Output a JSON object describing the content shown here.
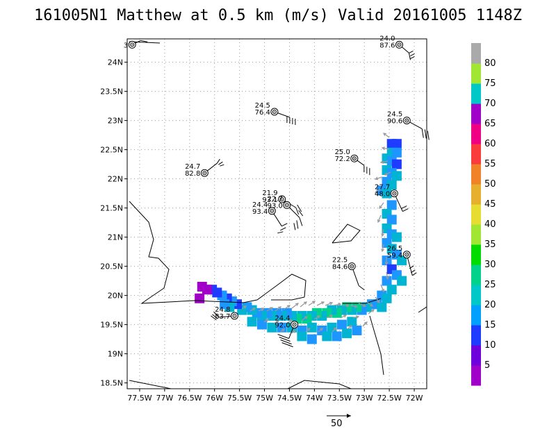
{
  "title": "161005N1 Matthew at 0.5 km (m/s) Valid 20161005 1148Z",
  "chart_data": {
    "type": "scatter",
    "xlim": [
      -77.75,
      -71.75
    ],
    "ylim": [
      18.4,
      24.4
    ],
    "grid": true,
    "x_ticks": [
      -77.5,
      -77.0,
      -76.5,
      -76.0,
      -75.5,
      -75.0,
      -74.5,
      -74.0,
      -73.5,
      -73.0,
      -72.5,
      -72.0
    ],
    "x_tick_labels": [
      "77.5W",
      "77W",
      "76.5W",
      "76W",
      "75.5W",
      "75W",
      "74.5W",
      "74W",
      "73.5W",
      "73W",
      "72.5W",
      "72W"
    ],
    "y_ticks": [
      18.5,
      19.0,
      19.5,
      20.0,
      20.5,
      21.0,
      21.5,
      22.0,
      22.5,
      23.0,
      23.5,
      24.0
    ],
    "y_tick_labels": [
      "18.5N",
      "19N",
      "19.5N",
      "20N",
      "20.5N",
      "21N",
      "21.5N",
      "22N",
      "22.5N",
      "23N",
      "23.5N",
      "24N"
    ],
    "colorbar": {
      "levels": [
        5,
        10,
        15,
        20,
        25,
        30,
        35,
        40,
        45,
        50,
        55,
        60,
        65,
        70,
        75,
        80
      ],
      "labels": [
        "5",
        "10",
        "15",
        "20",
        "25",
        "30",
        "35",
        "40",
        "45",
        "50",
        "55",
        "60",
        "65",
        "70",
        "75",
        "80"
      ],
      "colors": [
        "#a000c8",
        "#6e00dc",
        "#1e3cff",
        "#00a0ff",
        "#00c8c8",
        "#00d28c",
        "#00dc00",
        "#a0e632",
        "#e6dc32",
        "#e6af2d",
        "#f08228",
        "#fa3c3c",
        "#f00082",
        "#a000c8",
        "#00c8c8",
        "#a0e632",
        "#aaaaaa"
      ]
    },
    "stations": [
      {
        "lon": -77.65,
        "lat": 24.3,
        "l1": "",
        "l2": "3"
      },
      {
        "lon": -72.3,
        "lat": 24.3,
        "l1": "24.0",
        "l2": "87.6"
      },
      {
        "lon": -74.8,
        "lat": 23.15,
        "l1": "24.5",
        "l2": "76.4"
      },
      {
        "lon": -72.15,
        "lat": 23.0,
        "l1": "24.5",
        "l2": "90.6"
      },
      {
        "lon": -73.2,
        "lat": 22.35,
        "l1": "25.0",
        "l2": "72.2"
      },
      {
        "lon": -76.2,
        "lat": 22.1,
        "l1": "24.7",
        "l2": "82.8"
      },
      {
        "lon": -72.4,
        "lat": 21.75,
        "l1": "27.7",
        "l2": "48.0"
      },
      {
        "lon": -74.65,
        "lat": 21.65,
        "l1": "21.9",
        "l2": "93.1"
      },
      {
        "lon": -74.55,
        "lat": 21.55,
        "l1": "22.7",
        "l2": "93.0"
      },
      {
        "lon": -74.85,
        "lat": 21.45,
        "l1": "24.4",
        "l2": "93.4"
      },
      {
        "lon": -72.15,
        "lat": 20.7,
        "l1": "26.5",
        "l2": "59.4"
      },
      {
        "lon": -73.25,
        "lat": 20.5,
        "l1": "22.5",
        "l2": "84.6"
      },
      {
        "lon": -75.6,
        "lat": 19.65,
        "l1": "24.8",
        "l2": "83.7"
      },
      {
        "lon": -74.4,
        "lat": 19.5,
        "l1": "24.4",
        "l2": "92.0"
      }
    ],
    "reference_vector_label": "50"
  }
}
